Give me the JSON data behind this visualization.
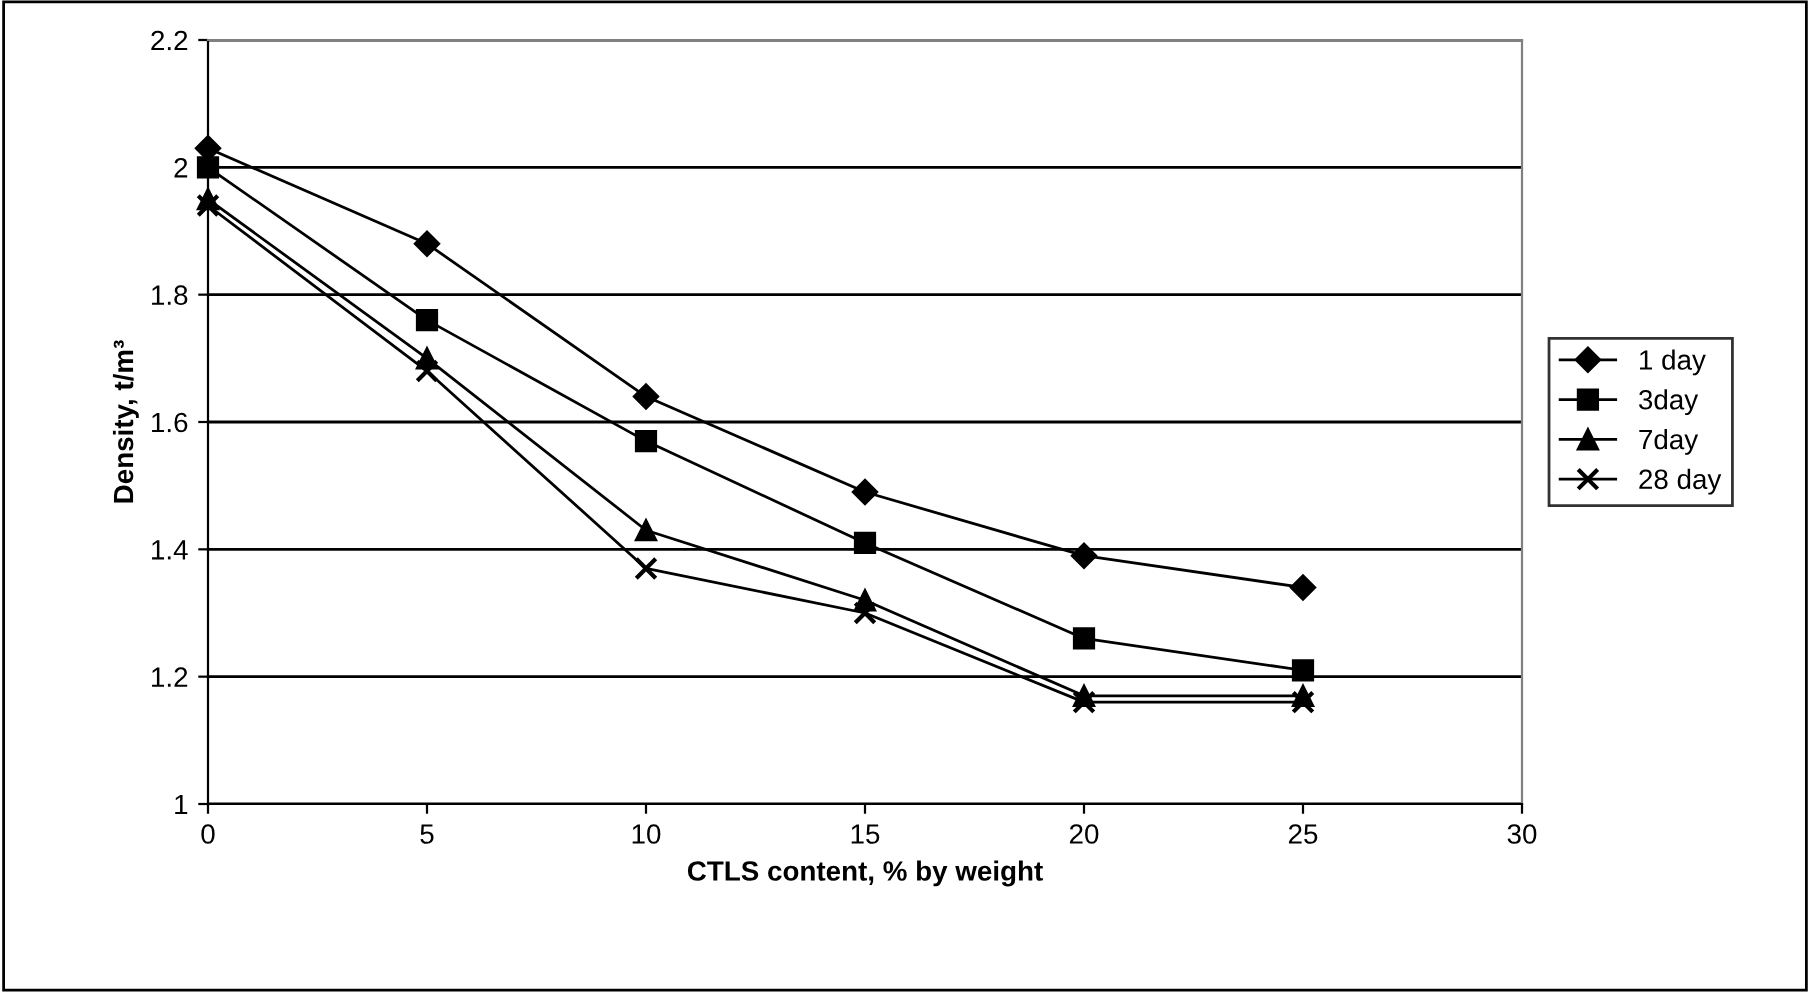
{
  "chart_data": {
    "type": "line",
    "xlabel": "CTLS content, % by weight",
    "ylabel": "Density, t/m³",
    "x": [
      0,
      5,
      10,
      15,
      20,
      25
    ],
    "series": [
      {
        "name": "1 day",
        "color": "#000000",
        "marker": "diamond",
        "values": [
          2.03,
          1.88,
          1.64,
          1.49,
          1.39,
          1.34
        ]
      },
      {
        "name": "3day",
        "color": "#000000",
        "marker": "square",
        "values": [
          2.0,
          1.76,
          1.57,
          1.41,
          1.26,
          1.21
        ]
      },
      {
        "name": "7day",
        "color": "#000000",
        "marker": "triangle",
        "values": [
          1.95,
          1.7,
          1.43,
          1.32,
          1.17,
          1.17
        ]
      },
      {
        "name": "28 day",
        "color": "#000000",
        "marker": "cross",
        "values": [
          1.94,
          1.68,
          1.37,
          1.3,
          1.16,
          1.16
        ]
      }
    ],
    "xlim": [
      0,
      30
    ],
    "xticks": [
      0,
      5,
      10,
      15,
      20,
      25,
      30
    ],
    "ylim": [
      1,
      2.2
    ],
    "yticks": [
      1,
      1.2,
      1.4,
      1.6,
      1.8,
      2,
      2.2
    ],
    "grid": "y",
    "legend": "right",
    "line_style": "solid"
  }
}
